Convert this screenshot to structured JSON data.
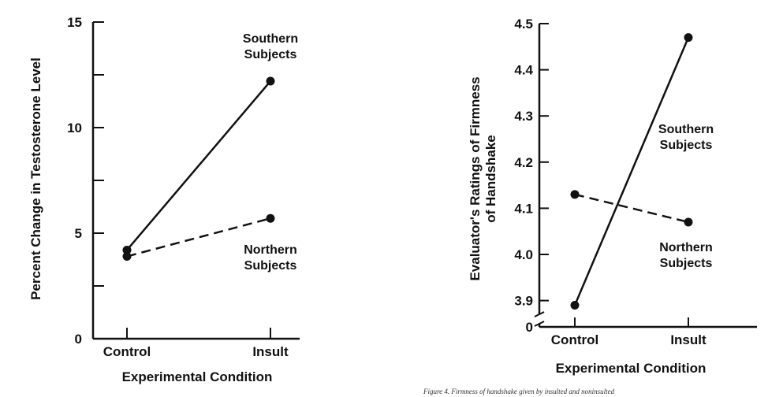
{
  "caption": "Figure 4.  Firmness of handshake given by insulted and noninsulted",
  "chart_data": [
    {
      "type": "line",
      "title": "",
      "xlabel": "Experimental Condition",
      "ylabel": "Percent Change in Testosterone Level",
      "categories": [
        "Control",
        "Insult"
      ],
      "ylim": [
        0,
        15
      ],
      "yticks": [
        0,
        5,
        10,
        15
      ],
      "grid": false,
      "series": [
        {
          "name": "Southern Subjects",
          "values": [
            4.2,
            12.2
          ],
          "style": "solid",
          "color": "#111111"
        },
        {
          "name": "Northern Subjects",
          "values": [
            3.9,
            5.7
          ],
          "style": "dashed",
          "color": "#111111"
        }
      ]
    },
    {
      "type": "line",
      "title": "",
      "xlabel": "Experimental Condition",
      "ylabel": "Evaluator's Ratings of Firmness of Handshake",
      "categories": [
        "Control",
        "Insult"
      ],
      "ylim": [
        3.85,
        4.5
      ],
      "yticks": [
        "3.9",
        "4.0",
        "4.1",
        "4.2",
        "4.3",
        "4.4",
        "4.5"
      ],
      "axis_break_label": "0",
      "grid": false,
      "series": [
        {
          "name": "Southern Subjects",
          "values": [
            3.89,
            4.47
          ],
          "style": "solid",
          "color": "#111111"
        },
        {
          "name": "Northern Subjects",
          "values": [
            4.13,
            4.07
          ],
          "style": "dashed",
          "color": "#111111"
        }
      ]
    }
  ]
}
